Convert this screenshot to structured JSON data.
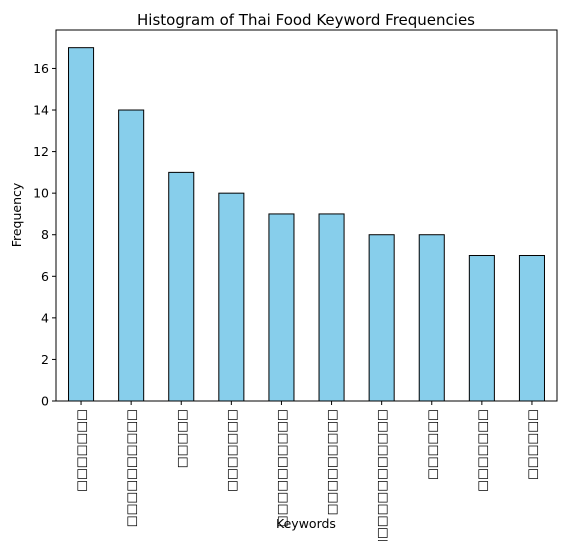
{
  "chart_data": {
    "type": "bar",
    "title": "Histogram of Thai Food Keyword Frequencies",
    "xlabel": "Keywords",
    "ylabel": "Frequency",
    "categories": [
      "□□□□□□□",
      "□□□□□□□□□□",
      "□□□□□",
      "□□□□□□□",
      "□□□□□□□□□□",
      "□□□□□□□□□",
      "□□□□□□□□□□□□",
      "□□□□□□",
      "□□□□□□□",
      "□□□□□□"
    ],
    "values": [
      17,
      14,
      11,
      10,
      9,
      9,
      8,
      8,
      7,
      7
    ],
    "ylim": [
      0,
      17.85
    ],
    "yticks": [
      0,
      2,
      4,
      6,
      8,
      10,
      12,
      14,
      16
    ],
    "grid": false,
    "legend": "none",
    "bar_color": "#87CEEB",
    "edge_color": "#000000"
  }
}
